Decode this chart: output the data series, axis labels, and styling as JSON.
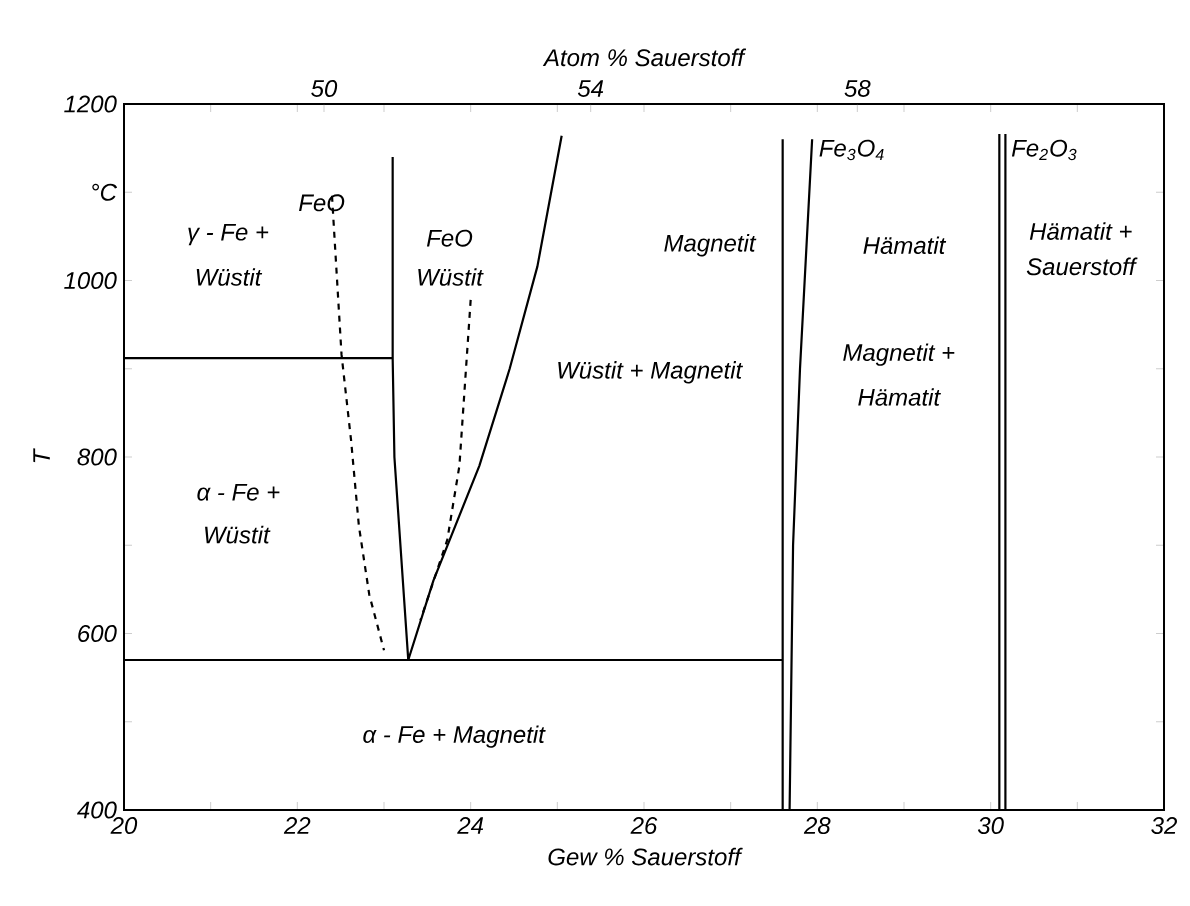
{
  "chart_data": {
    "type": "line",
    "xlabel": "Gew % Sauerstoff",
    "ylabel": "T",
    "x2label": "Atom % Sauerstoff",
    "xlim": [
      20,
      32
    ],
    "ylim": [
      400,
      1200
    ],
    "xticks": [
      20,
      {
        "value": 21,
        "label": null
      },
      22,
      {
        "value": 23,
        "label": null
      },
      24,
      {
        "value": 25,
        "label": null
      },
      26,
      {
        "value": 27,
        "label": null
      },
      28,
      {
        "value": 29,
        "label": null
      },
      30,
      {
        "value": 31,
        "label": null
      },
      32
    ],
    "yticks": [
      400,
      {
        "value": 500,
        "label": null
      },
      600,
      {
        "value": 700,
        "label": null
      },
      800,
      {
        "value": 900,
        "label": null
      },
      1000,
      {
        "value": 1100,
        "label": "°C"
      },
      1200
    ],
    "x2lim": [
      47.0,
      62.6
    ],
    "x2ticks": [
      50,
      54,
      58
    ],
    "series": [
      {
        "color": "#000000",
        "line_style": "solid",
        "x": [
          20,
          23.1
        ],
        "values": [
          912,
          912
        ]
      },
      {
        "color": "#000000",
        "line_style": "solid",
        "x": [
          20,
          27.6
        ],
        "values": [
          570,
          570
        ]
      },
      {
        "color": "#000000",
        "line_style": "solid",
        "x": [
          23.1,
          23.1,
          23.12,
          23.28
        ],
        "values": [
          1140,
          912,
          800,
          570
        ]
      },
      {
        "color": "#000000",
        "line_style": "solid",
        "x": [
          23.28,
          23.57,
          24.1,
          24.45,
          24.77,
          25.05
        ],
        "values": [
          570,
          660,
          790,
          900,
          1016,
          1164
        ]
      },
      {
        "color": "#000000",
        "line_style": "dashed",
        "x": [
          22.4,
          22.51,
          22.62,
          22.71,
          22.83,
          23.0
        ],
        "values": [
          1096,
          916,
          819,
          722,
          644,
          581
        ]
      },
      {
        "color": "#000000",
        "line_style": "dashed",
        "x": [
          24.0,
          23.87,
          23.73,
          23.42
        ],
        "values": [
          978,
          790,
          706,
          615
        ]
      },
      {
        "color": "#000000",
        "line_style": "solid",
        "x": [
          27.6,
          27.6
        ],
        "values": [
          1160,
          400
        ]
      },
      {
        "color": "#000000",
        "line_style": "solid",
        "x": [
          27.94,
          27.8,
          27.72,
          27.68
        ],
        "values": [
          1160,
          900,
          700,
          400
        ]
      },
      {
        "color": "#000000",
        "line_style": "solid",
        "x": [
          30.1,
          30.1
        ],
        "values": [
          1166,
          400
        ]
      },
      {
        "color": "#000000",
        "line_style": "solid",
        "x": [
          30.17,
          30.17
        ],
        "values": [
          1166,
          400
        ]
      }
    ],
    "annotations": [
      "γ - Fe +",
      "Wüstit",
      "FeO",
      "FeO",
      "Wüstit",
      "α - Fe +",
      "Wüstit",
      "α - Fe + Magnetit",
      "Wüstit + Magnetit",
      "Magnetit",
      "Fe$_{3}$O$_{4}$",
      "Hämatit",
      "Magnetit +",
      "Hämatit",
      "Fe$_{2}$O$_{3}$",
      "Hämatit +",
      "Sauerstoff"
    ]
  }
}
